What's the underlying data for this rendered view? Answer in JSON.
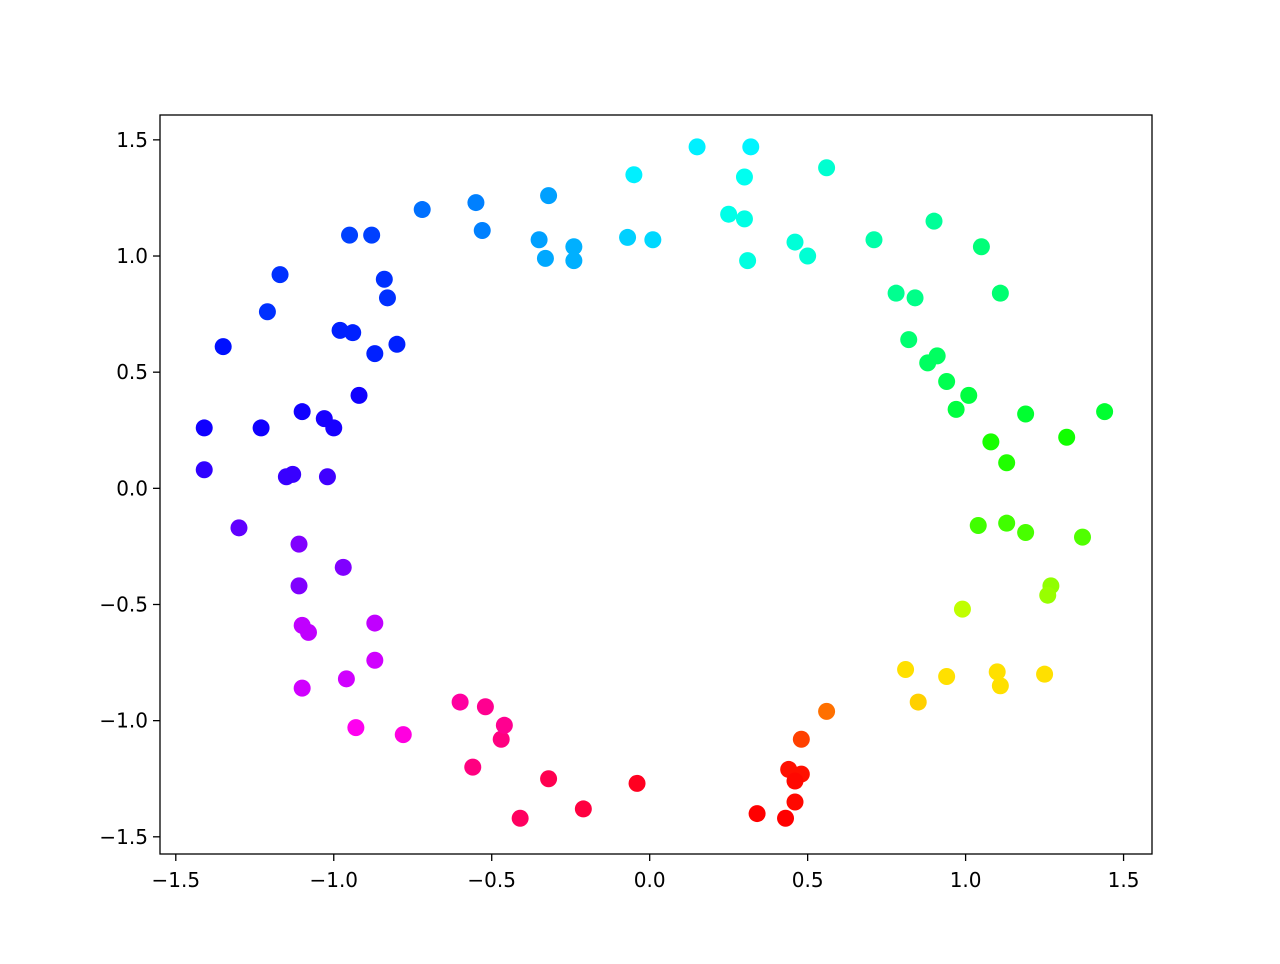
{
  "chart_data": {
    "type": "scatter",
    "x": [
      0.15,
      0.32,
      -0.05,
      0.3,
      0.56,
      0.25,
      0.3,
      0.31,
      0.46,
      0.5,
      0.71,
      0.9,
      1.05,
      1.11,
      0.78,
      0.84,
      0.82,
      0.91,
      0.88,
      0.94,
      1.01,
      0.97,
      1.44,
      1.19,
      1.32,
      1.08,
      1.13,
      1.04,
      1.13,
      1.19,
      1.37,
      1.27,
      1.26,
      0.99,
      0.81,
      0.94,
      1.1,
      1.11,
      1.25,
      0.85,
      0.56,
      0.48,
      0.44,
      0.48,
      0.46,
      0.46,
      0.34,
      0.43,
      -0.04,
      -0.21,
      -0.32,
      -0.41,
      -0.56,
      -0.47,
      -0.46,
      -0.52,
      -0.6,
      -0.78,
      -0.93,
      -0.96,
      -0.87,
      -1.1,
      -0.87,
      -1.1,
      -1.08,
      -1.11,
      -0.97,
      -1.11,
      -1.3,
      -1.41,
      -1.15,
      -1.13,
      -1.02,
      -1.41,
      -1.23,
      -1.1,
      -1.03,
      -1.0,
      -0.92,
      -1.35,
      -0.87,
      -0.8,
      -0.98,
      -0.94,
      -1.21,
      -1.17,
      -0.83,
      -0.84,
      -0.95,
      -0.88,
      -0.72,
      -0.55,
      -0.53,
      -0.32,
      -0.35,
      -0.33,
      -0.24,
      -0.24,
      -0.07,
      0.01
    ],
    "y": [
      1.47,
      1.47,
      1.35,
      1.34,
      1.38,
      1.18,
      1.16,
      0.98,
      1.06,
      1.0,
      1.07,
      1.15,
      1.04,
      0.84,
      0.84,
      0.82,
      0.64,
      0.57,
      0.54,
      0.46,
      0.4,
      0.34,
      0.33,
      0.32,
      0.22,
      0.2,
      0.11,
      -0.16,
      -0.15,
      -0.19,
      -0.21,
      -0.42,
      -0.46,
      -0.52,
      -0.78,
      -0.81,
      -0.79,
      -0.85,
      -0.8,
      -0.92,
      -0.96,
      -1.08,
      -1.21,
      -1.23,
      -1.26,
      -1.35,
      -1.4,
      -1.42,
      -1.27,
      -1.38,
      -1.25,
      -1.42,
      -1.2,
      -1.08,
      -1.02,
      -0.94,
      -0.92,
      -1.06,
      -1.03,
      -0.82,
      -0.74,
      -0.86,
      -0.58,
      -0.59,
      -0.62,
      -0.42,
      -0.34,
      -0.24,
      -0.17,
      0.08,
      0.05,
      0.06,
      0.05,
      0.26,
      0.26,
      0.33,
      0.3,
      0.26,
      0.4,
      0.61,
      0.58,
      0.62,
      0.68,
      0.67,
      0.76,
      0.92,
      0.82,
      0.9,
      1.09,
      1.09,
      1.2,
      1.23,
      1.11,
      1.26,
      1.07,
      0.99,
      1.04,
      0.98,
      1.08,
      1.07
    ],
    "colors": [
      "#00f0ff",
      "#00f4ff",
      "#00f0ff",
      "#00fff0",
      "#00ffd0",
      "#00ffe8",
      "#00ffe4",
      "#00ffe0",
      "#00ffd8",
      "#00ffd4",
      "#00ffa8",
      "#00ff98",
      "#00ff78",
      "#00ff70",
      "#00ff90",
      "#00ff88",
      "#00ff70",
      "#00ff60",
      "#00ff60",
      "#00ff50",
      "#00ff40",
      "#00ff40",
      "#00ff30",
      "#00ff30",
      "#10ff00",
      "#18ff00",
      "#20ff00",
      "#40ff00",
      "#40ff00",
      "#48ff00",
      "#50ff00",
      "#90ff00",
      "#98ff00",
      "#c0ff00",
      "#ffe000",
      "#ffe000",
      "#ffe000",
      "#ffe000",
      "#ffe000",
      "#ffd000",
      "#ff7000",
      "#ff4000",
      "#ff1000",
      "#ff1000",
      "#ff0800",
      "#ff0800",
      "#ff0000",
      "#ff0000",
      "#ff0020",
      "#ff0040",
      "#ff0050",
      "#ff0060",
      "#ff0080",
      "#ff0080",
      "#ff0090",
      "#ff0090",
      "#ff00a0",
      "#ff00e0",
      "#ff00f0",
      "#d000ff",
      "#d000ff",
      "#d000ff",
      "#c000ff",
      "#c000ff",
      "#c000ff",
      "#8000ff",
      "#8000ff",
      "#8000ff",
      "#6000ff",
      "#3000ff",
      "#3800ff",
      "#3800ff",
      "#4000ff",
      "#1000ff",
      "#1000ff",
      "#1000ff",
      "#1800ff",
      "#1800ff",
      "#1000ff",
      "#0010ff",
      "#0020ff",
      "#0020ff",
      "#0020ff",
      "#0020ff",
      "#0030ff",
      "#0030ff",
      "#0030ff",
      "#0030ff",
      "#0040ff",
      "#0040ff",
      "#0070ff",
      "#0080ff",
      "#0080ff",
      "#00a0ff",
      "#00a0ff",
      "#00a8ff",
      "#00b0ff",
      "#00b0ff",
      "#00d0ff",
      "#00d8ff"
    ],
    "xlim": [
      -1.55,
      1.59
    ],
    "ylim": [
      -1.574,
      1.607
    ],
    "xticks": [
      {
        "value": -1.5,
        "label": "−1.5"
      },
      {
        "value": -1.0,
        "label": "−1.0"
      },
      {
        "value": -0.5,
        "label": "−0.5"
      },
      {
        "value": 0,
        "label": "0.0"
      },
      0.5,
      {
        "value": 1.0,
        "label": "1.0"
      },
      1.5
    ],
    "yticks": [
      {
        "value": -1.5,
        "label": "−1.5"
      },
      {
        "value": -1.0,
        "label": "−1.0"
      },
      {
        "value": -0.5,
        "label": "−0.5"
      },
      {
        "value": 0,
        "label": "0.0"
      },
      0.5,
      {
        "value": 1.0,
        "label": "1.0"
      },
      1.5
    ]
  }
}
